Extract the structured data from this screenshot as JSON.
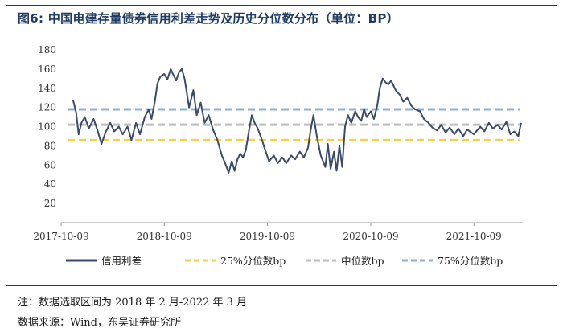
{
  "header": {
    "figure_label": "图6:",
    "title": "中国电建存量债券信用利差走势及历史分位数分布（单位：BP）"
  },
  "footer": {
    "note": "注：数据选取区间为 2018 年 2 月-2022 年 3 月",
    "source": "数据来源：Wind，东吴证券研究所"
  },
  "chart_data": {
    "type": "line",
    "x_tick_labels": [
      "2017-10-09",
      "2018-10-09",
      "2019-10-09",
      "2020-10-09",
      "2021-10-09"
    ],
    "y_tick_labels": [
      "-",
      "20",
      "40",
      "60",
      "80",
      "100",
      "120",
      "140",
      "160",
      "180"
    ],
    "ylim": [
      0,
      180
    ],
    "xlim": [
      "2017-10-09",
      "2022-03-31"
    ],
    "grid": false,
    "legend_position": "bottom",
    "colors": {
      "credit_spread": "#3b4a68",
      "p25": "#f3d14a",
      "median": "#bdbdbd",
      "p75": "#8fb0d2"
    },
    "legend": {
      "credit_spread": "信用利差",
      "p25": "25%分位数bp",
      "median": "中位数bp",
      "p75": "75%分位数bp"
    },
    "reference_lines": {
      "p25": 86,
      "median": 102,
      "p75": 118
    },
    "series": [
      {
        "name": "信用利差",
        "points": [
          [
            "2017-11-20",
            128
          ],
          [
            "2017-12-01",
            115
          ],
          [
            "2017-12-10",
            92
          ],
          [
            "2017-12-20",
            104
          ],
          [
            "2018-01-01",
            110
          ],
          [
            "2018-01-15",
            98
          ],
          [
            "2018-02-01",
            108
          ],
          [
            "2018-02-15",
            96
          ],
          [
            "2018-03-01",
            82
          ],
          [
            "2018-03-15",
            94
          ],
          [
            "2018-04-01",
            104
          ],
          [
            "2018-04-15",
            95
          ],
          [
            "2018-05-01",
            100
          ],
          [
            "2018-05-15",
            92
          ],
          [
            "2018-06-01",
            100
          ],
          [
            "2018-06-15",
            86
          ],
          [
            "2018-07-01",
            104
          ],
          [
            "2018-07-15",
            92
          ],
          [
            "2018-08-01",
            110
          ],
          [
            "2018-08-15",
            118
          ],
          [
            "2018-08-25",
            108
          ],
          [
            "2018-09-05",
            125
          ],
          [
            "2018-09-15",
            145
          ],
          [
            "2018-09-25",
            152
          ],
          [
            "2018-10-09",
            155
          ],
          [
            "2018-10-20",
            149
          ],
          [
            "2018-11-01",
            160
          ],
          [
            "2018-11-10",
            154
          ],
          [
            "2018-11-20",
            148
          ],
          [
            "2018-12-01",
            157
          ],
          [
            "2018-12-10",
            160
          ],
          [
            "2018-12-20",
            150
          ],
          [
            "2019-01-05",
            120
          ],
          [
            "2019-01-20",
            138
          ],
          [
            "2019-02-01",
            112
          ],
          [
            "2019-02-15",
            125
          ],
          [
            "2019-03-01",
            104
          ],
          [
            "2019-03-15",
            112
          ],
          [
            "2019-04-01",
            96
          ],
          [
            "2019-04-15",
            86
          ],
          [
            "2019-05-01",
            70
          ],
          [
            "2019-05-15",
            60
          ],
          [
            "2019-05-25",
            52
          ],
          [
            "2019-06-05",
            64
          ],
          [
            "2019-06-15",
            54
          ],
          [
            "2019-06-25",
            66
          ],
          [
            "2019-07-05",
            72
          ],
          [
            "2019-07-15",
            68
          ],
          [
            "2019-07-25",
            76
          ],
          [
            "2019-08-05",
            96
          ],
          [
            "2019-08-15",
            112
          ],
          [
            "2019-08-25",
            104
          ],
          [
            "2019-09-05",
            98
          ],
          [
            "2019-09-20",
            86
          ],
          [
            "2019-10-01",
            76
          ],
          [
            "2019-10-15",
            64
          ],
          [
            "2019-11-01",
            70
          ],
          [
            "2019-11-15",
            62
          ],
          [
            "2019-12-01",
            68
          ],
          [
            "2019-12-15",
            62
          ],
          [
            "2020-01-01",
            70
          ],
          [
            "2020-01-15",
            66
          ],
          [
            "2020-02-01",
            74
          ],
          [
            "2020-02-15",
            68
          ],
          [
            "2020-03-01",
            78
          ],
          [
            "2020-03-10",
            96
          ],
          [
            "2020-03-20",
            112
          ],
          [
            "2020-04-01",
            90
          ],
          [
            "2020-04-15",
            70
          ],
          [
            "2020-05-01",
            58
          ],
          [
            "2020-05-10",
            82
          ],
          [
            "2020-05-20",
            56
          ],
          [
            "2020-06-01",
            74
          ],
          [
            "2020-06-10",
            54
          ],
          [
            "2020-06-20",
            80
          ],
          [
            "2020-06-30",
            58
          ],
          [
            "2020-07-10",
            100
          ],
          [
            "2020-07-20",
            112
          ],
          [
            "2020-08-01",
            104
          ],
          [
            "2020-08-15",
            116
          ],
          [
            "2020-08-25",
            110
          ],
          [
            "2020-09-05",
            106
          ],
          [
            "2020-09-15",
            118
          ],
          [
            "2020-09-25",
            110
          ],
          [
            "2020-10-09",
            116
          ],
          [
            "2020-10-20",
            108
          ],
          [
            "2020-11-01",
            122
          ],
          [
            "2020-11-10",
            140
          ],
          [
            "2020-11-20",
            150
          ],
          [
            "2020-12-01",
            146
          ],
          [
            "2020-12-10",
            144
          ],
          [
            "2020-12-20",
            148
          ],
          [
            "2021-01-05",
            138
          ],
          [
            "2021-01-20",
            133
          ],
          [
            "2021-02-01",
            126
          ],
          [
            "2021-02-15",
            130
          ],
          [
            "2021-03-01",
            122
          ],
          [
            "2021-03-15",
            118
          ],
          [
            "2021-04-01",
            116
          ],
          [
            "2021-04-15",
            108
          ],
          [
            "2021-05-01",
            104
          ],
          [
            "2021-05-15",
            99
          ],
          [
            "2021-06-01",
            96
          ],
          [
            "2021-06-15",
            102
          ],
          [
            "2021-07-01",
            94
          ],
          [
            "2021-07-15",
            99
          ],
          [
            "2021-08-01",
            92
          ],
          [
            "2021-08-15",
            98
          ],
          [
            "2021-09-01",
            90
          ],
          [
            "2021-09-15",
            97
          ],
          [
            "2021-10-09",
            92
          ],
          [
            "2021-10-20",
            96
          ],
          [
            "2021-11-01",
            100
          ],
          [
            "2021-11-15",
            95
          ],
          [
            "2021-12-01",
            104
          ],
          [
            "2021-12-15",
            98
          ],
          [
            "2022-01-01",
            102
          ],
          [
            "2022-01-15",
            97
          ],
          [
            "2022-02-01",
            105
          ],
          [
            "2022-02-15",
            92
          ],
          [
            "2022-03-01",
            95
          ],
          [
            "2022-03-15",
            90
          ],
          [
            "2022-03-25",
            104
          ]
        ]
      }
    ]
  }
}
